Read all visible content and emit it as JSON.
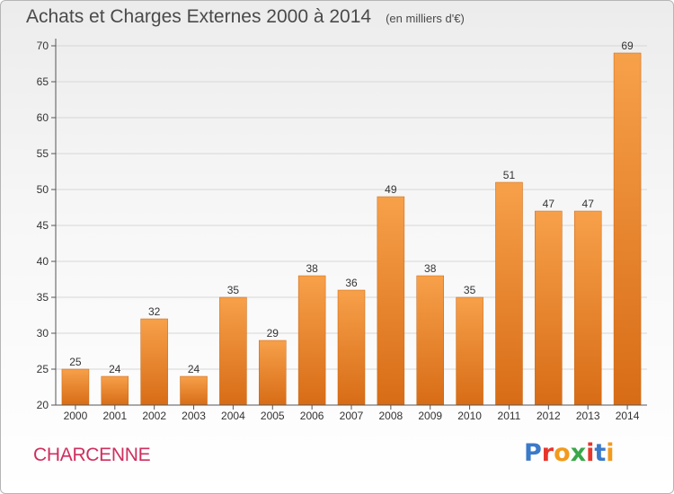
{
  "title": "Achats et Charges Externes 2000 à 2014",
  "subtitle": "(en milliers d'€)",
  "town": "CHARCENNE",
  "brand": {
    "text": "Proxiti",
    "letter_colors": [
      "#3b79c9",
      "#e8352c",
      "#f39a1b",
      "#3aa74a",
      "#e8352c",
      "#3b79c9",
      "#f39a1b"
    ]
  },
  "colors": {
    "bar_top": "#f7a04a",
    "bar_bottom": "#d86c16",
    "bar_stroke": "#c8640f",
    "axis": "#555555",
    "grid": "#d7d7d7",
    "text": "#333333"
  },
  "chart_data": {
    "type": "bar",
    "categories": [
      "2000",
      "2001",
      "2002",
      "2003",
      "2004",
      "2005",
      "2006",
      "2007",
      "2008",
      "2009",
      "2010",
      "2011",
      "2012",
      "2013",
      "2014"
    ],
    "values": [
      25,
      24,
      32,
      24,
      35,
      29,
      38,
      36,
      49,
      38,
      35,
      51,
      47,
      47,
      69
    ],
    "data_labels": [
      "25",
      "24",
      "32",
      "24",
      "35",
      "29",
      "38",
      "36",
      "49",
      "38",
      "35",
      "51",
      "47",
      "47",
      "69"
    ],
    "title": "Achats et Charges Externes 2000 à 2014",
    "ylim": [
      20,
      70
    ],
    "yticks": [
      20,
      25,
      30,
      35,
      40,
      45,
      50,
      55,
      60,
      65,
      70
    ],
    "grid": true,
    "legend": "none"
  }
}
